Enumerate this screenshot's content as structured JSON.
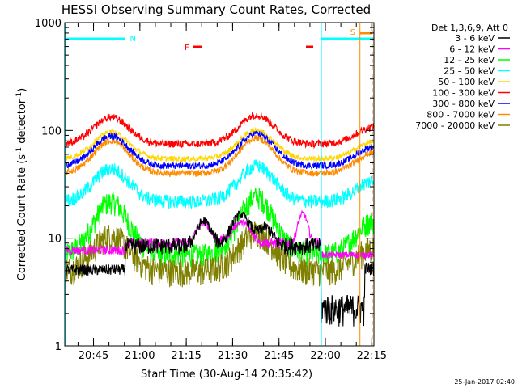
{
  "chart_data": {
    "type": "line",
    "title": "HESSI Observing Summary Count Rates, Corrected",
    "xlabel": "Start Time (30-Aug-14 20:35:42)",
    "ylabel_main": "Corrected Count Rate (s",
    "ylabel_sup1": "-1",
    "ylabel_mid": " detector",
    "ylabel_sup2": "-1",
    "ylabel_end": ")",
    "yscale": "log",
    "ylim": [
      1,
      1000
    ],
    "xlim_minutes": [
      0,
      100
    ],
    "x_ticks": [
      {
        "label": "20:45",
        "t": 9.3
      },
      {
        "label": "21:00",
        "t": 24.3
      },
      {
        "label": "21:15",
        "t": 39.3
      },
      {
        "label": "21:30",
        "t": 54.3
      },
      {
        "label": "21:45",
        "t": 69.3
      },
      {
        "label": "22:00",
        "t": 84.3
      },
      {
        "label": "22:15",
        "t": 99.3
      }
    ],
    "y_ticks": [
      {
        "label": "1",
        "v": 1
      },
      {
        "label": "10",
        "v": 10
      },
      {
        "label": "100",
        "v": 100
      },
      {
        "label": "1000",
        "v": 1000
      }
    ],
    "legend_header": "Det 1,3,6,9, Att 0",
    "series": [
      {
        "name": "3 - 6 keV",
        "color": "#000000"
      },
      {
        "name": "6 - 12 keV",
        "color": "#ff00ff"
      },
      {
        "name": "12 - 25 keV",
        "color": "#00ff00"
      },
      {
        "name": "25 - 50 keV",
        "color": "#00ffff"
      },
      {
        "name": "50 - 100 keV",
        "color": "#ffd700"
      },
      {
        "name": "100 - 300 keV",
        "color": "#ff0000"
      },
      {
        "name": "300 - 800 keV",
        "color": "#0000ff"
      },
      {
        "name": "800 - 7000 keV",
        "color": "#ff8c00"
      },
      {
        "name": "7000 - 20000 keV",
        "color": "#808000"
      }
    ],
    "annotations": {
      "night_label": "N",
      "flare_label": "F",
      "saa_label": "S"
    },
    "timestamp": "25-Jan-2017 02:40"
  }
}
